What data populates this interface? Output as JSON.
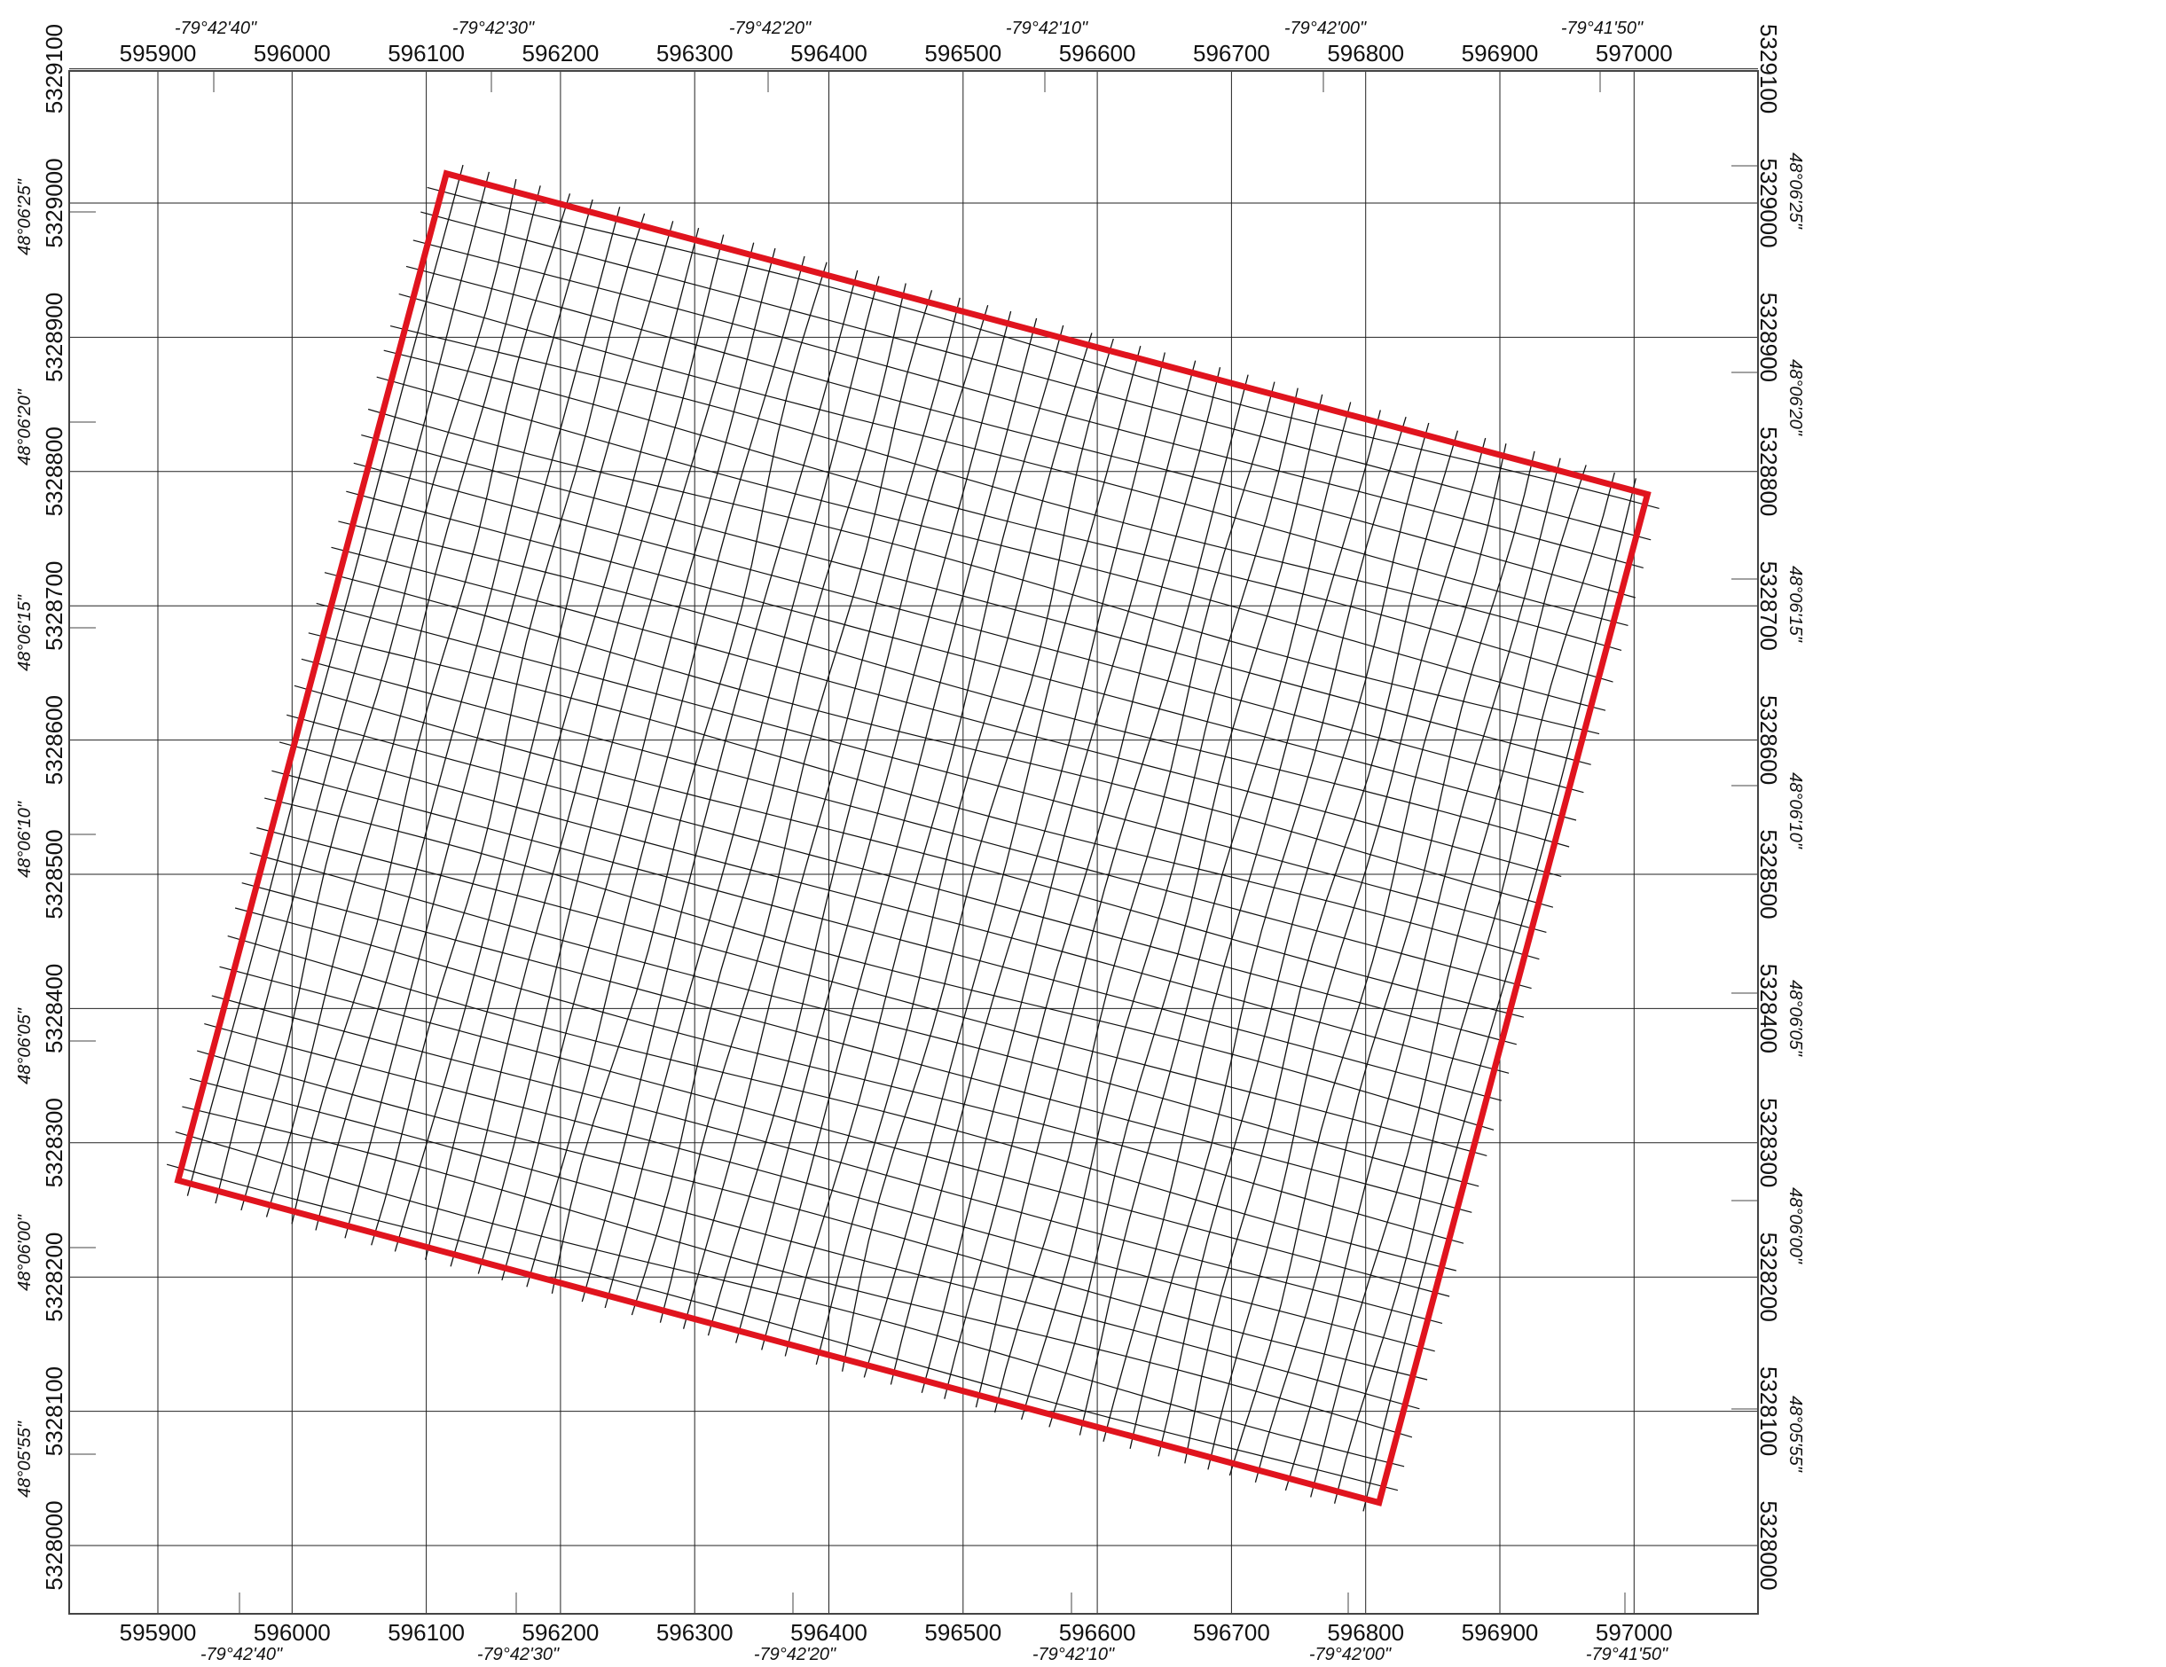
{
  "map": {
    "frame_color": "#444444",
    "grid_color": "#222222",
    "line_color": "#111111",
    "outline_color": "#e0141e",
    "x_ticks": [
      "595900",
      "596000",
      "596100",
      "596200",
      "596300",
      "596400",
      "596500",
      "596600",
      "596700",
      "596800",
      "596900",
      "597000"
    ],
    "y_ticks": [
      "5329100",
      "5329000",
      "5328900",
      "5328800",
      "5328700",
      "5328600",
      "5328500",
      "5328400",
      "5328300",
      "5328200",
      "5328100",
      "5328000"
    ],
    "lon_ticks": [
      "-79°42'40\"",
      "-79°42'30\"",
      "-79°42'20\"",
      "-79°42'10\"",
      "-79°42'00\"",
      "-79°41'50\""
    ],
    "lat_ticks": [
      "48°06'25\"",
      "48°06'20\"",
      "48°06'15\"",
      "48°06'10\"",
      "48°06'05\"",
      "48°06'00\"",
      "48°05'55\""
    ],
    "survey_block": {
      "corners_easting_northing": [
        [
          596115,
          5329022
        ],
        [
          597010,
          5328783
        ],
        [
          596810,
          5328032
        ],
        [
          595915,
          5328272
        ]
      ],
      "line_count": 46,
      "tie_line_count": 36
    }
  }
}
